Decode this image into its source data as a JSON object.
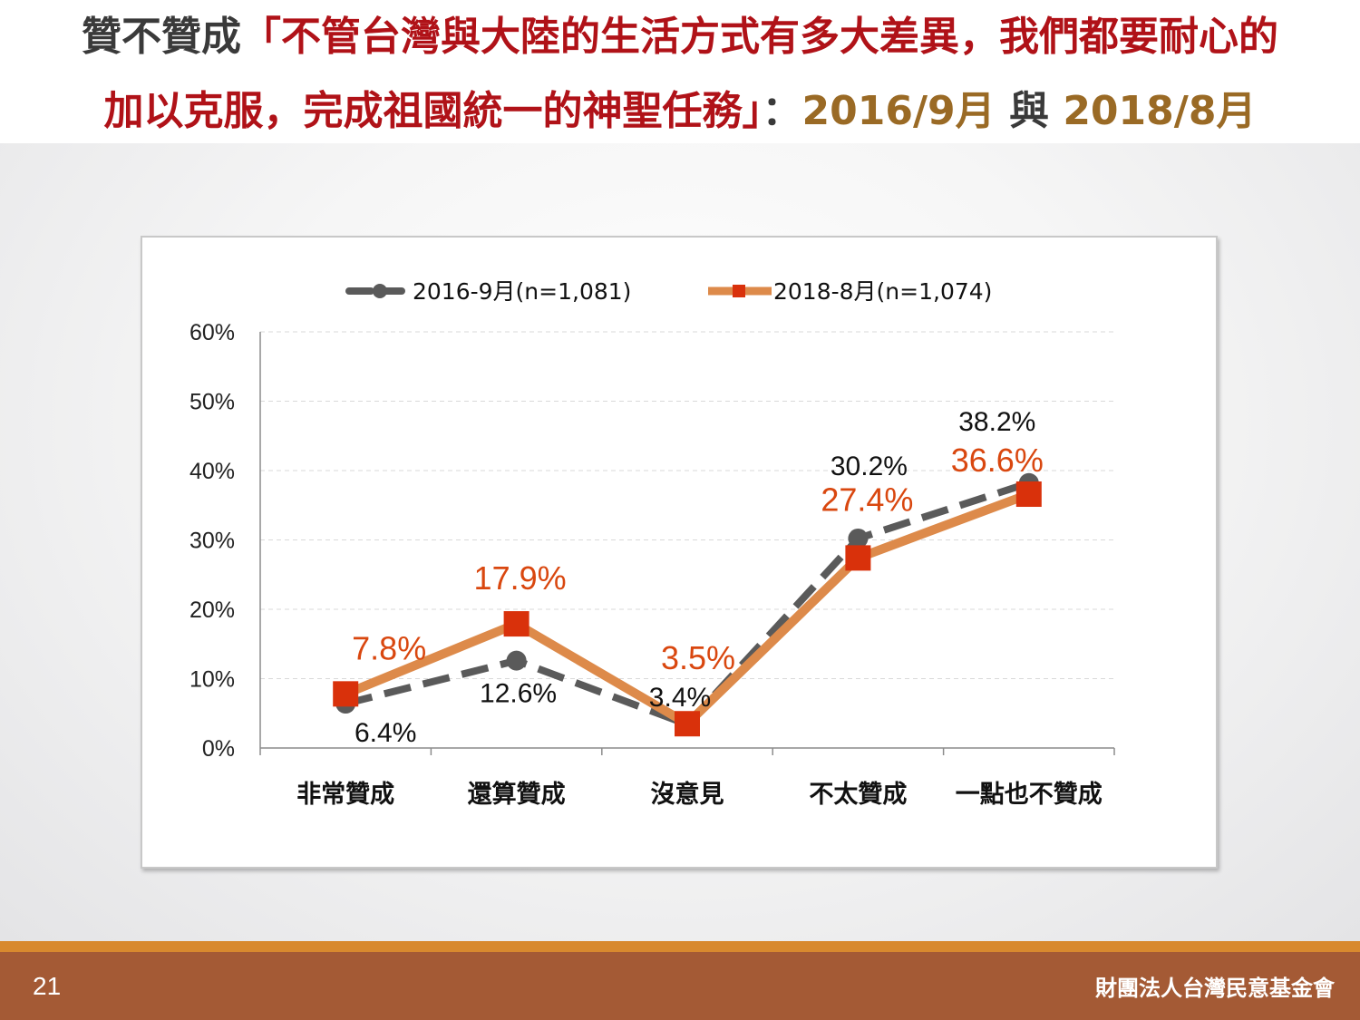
{
  "title": {
    "line1_prefix": "贊不贊成",
    "line1_quote": "「不管台灣與大陸的生活方式有多大差異，我們都要耐心的",
    "line2_quote": "加以克服，完成祖國統一的神聖任務」",
    "line2_colon": "：",
    "line2_date1": "2016/9月",
    "line2_and": " 與 ",
    "line2_date2": "2018/8月"
  },
  "chart_data": {
    "type": "line",
    "categories": [
      "非常贊成",
      "還算贊成",
      "沒意見",
      "不太贊成",
      "一點也不贊成"
    ],
    "ylim": [
      0,
      60
    ],
    "yticks": [
      "0%",
      "10%",
      "20%",
      "30%",
      "40%",
      "50%",
      "60%"
    ],
    "grid": true,
    "legend_position": "top",
    "series": [
      {
        "name": "2016-9月(n=1,081)",
        "values": [
          6.4,
          12.6,
          3.4,
          30.2,
          38.2
        ],
        "labels": [
          "6.4%",
          "12.6%",
          "3.4%",
          "30.2%",
          "38.2%"
        ],
        "color": "#5a5a5a",
        "style": "dashed",
        "marker": "circle"
      },
      {
        "name": "2018-8月(n=1,074)",
        "values": [
          7.8,
          17.9,
          3.5,
          27.4,
          36.6
        ],
        "labels": [
          "7.8%",
          "17.9%",
          "3.5%",
          "27.4%",
          "36.6%"
        ],
        "color": "#dd8a4a",
        "marker_color": "#d9310b",
        "label_color": "#d9470f",
        "style": "solid",
        "marker": "square"
      }
    ]
  },
  "footer": {
    "page_number": "21",
    "organization": "財團法人台灣民意基金會"
  }
}
